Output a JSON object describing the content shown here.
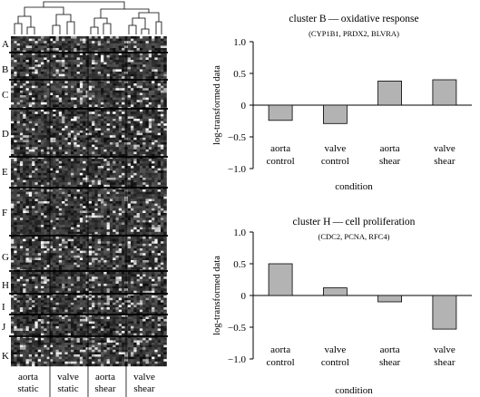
{
  "heatmap": {
    "cluster_labels": [
      "A",
      "B",
      "C",
      "D",
      "E",
      "F",
      "G",
      "H",
      "I",
      "J",
      "K"
    ],
    "column_labels": [
      [
        "aorta",
        "static"
      ],
      [
        "valve",
        "static"
      ],
      [
        "aorta",
        "shear"
      ],
      [
        "valve",
        "shear"
      ]
    ]
  },
  "chart_data": [
    {
      "type": "bar",
      "title": "cluster B — oxidative response",
      "subtitle": "(CYP1B1, PRDX2, BLVRA)",
      "xlabel": "condition",
      "ylabel": "log-transformed data",
      "categories": [
        [
          "aorta",
          "control"
        ],
        [
          "valve",
          "control"
        ],
        [
          "aorta",
          "shear"
        ],
        [
          "valve",
          "shear"
        ]
      ],
      "values": [
        -0.24,
        -0.29,
        0.38,
        0.4
      ],
      "ylim": [
        -1.0,
        1.0
      ],
      "yticks": [
        "1.0",
        "0.5",
        "0",
        "−0.5",
        "−1.0"
      ],
      "ytick_values": [
        1.0,
        0.5,
        0,
        -0.5,
        -1.0
      ],
      "bar_color": "#b3b3b3",
      "grid": false
    },
    {
      "type": "bar",
      "title": "cluster H — cell proliferation",
      "subtitle": "(CDC2, PCNA, RFC4)",
      "xlabel": "condition",
      "ylabel": "log-transformed data",
      "categories": [
        [
          "aorta",
          "control"
        ],
        [
          "valve",
          "control"
        ],
        [
          "aorta",
          "shear"
        ],
        [
          "valve",
          "shear"
        ]
      ],
      "values": [
        0.5,
        0.12,
        -0.1,
        -0.53
      ],
      "ylim": [
        -1.0,
        1.0
      ],
      "yticks": [
        "1.0",
        "0.5",
        "0",
        "−0.5",
        "−1.0"
      ],
      "ytick_values": [
        1.0,
        0.5,
        0,
        -0.5,
        -1.0
      ],
      "bar_color": "#b3b3b3",
      "grid": false
    }
  ]
}
